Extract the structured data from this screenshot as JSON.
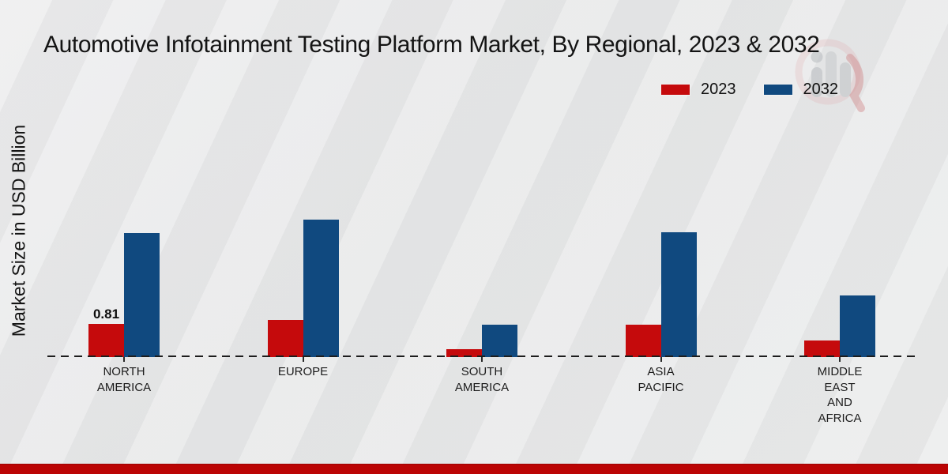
{
  "page": {
    "title": "Automotive Infotainment Testing Platform Market, By Regional, 2023 & 2032",
    "y_axis_label": "Market Size in USD Billion"
  },
  "legend": {
    "items": [
      {
        "label": "2023",
        "color": "#c50a0c"
      },
      {
        "label": "2032",
        "color": "#10497f"
      }
    ]
  },
  "chart_data": {
    "type": "bar",
    "title": "Automotive Infotainment Testing Platform Market, By Regional, 2023 & 2032",
    "ylabel": "Market Size in USD Billion",
    "categories": [
      "NORTH AMERICA",
      "EUROPE",
      "SOUTH AMERICA",
      "ASIA PACIFIC",
      "MIDDLE EAST AND AFRICA"
    ],
    "category_lines": [
      [
        "NORTH",
        "AMERICA"
      ],
      [
        "EUROPE"
      ],
      [
        "SOUTH",
        "AMERICA"
      ],
      [
        "ASIA",
        "PACIFIC"
      ],
      [
        "MIDDLE",
        "EAST",
        "AND",
        "AFRICA"
      ]
    ],
    "series": [
      {
        "name": "2023",
        "color": "#c50a0c",
        "values": [
          0.81,
          0.9,
          0.2,
          0.8,
          0.41
        ]
      },
      {
        "name": "2032",
        "color": "#10497f",
        "values": [
          3.03,
          3.37,
          0.8,
          3.05,
          1.5
        ]
      }
    ],
    "value_labels": [
      {
        "series": "2023",
        "category": "NORTH AMERICA",
        "text": "0.81"
      }
    ],
    "ylim": [
      0,
      3.6
    ],
    "grid": false,
    "baseline_style": "dashed",
    "legend_position": "top-right"
  },
  "footer": {
    "bar_color": "#bb0404"
  }
}
